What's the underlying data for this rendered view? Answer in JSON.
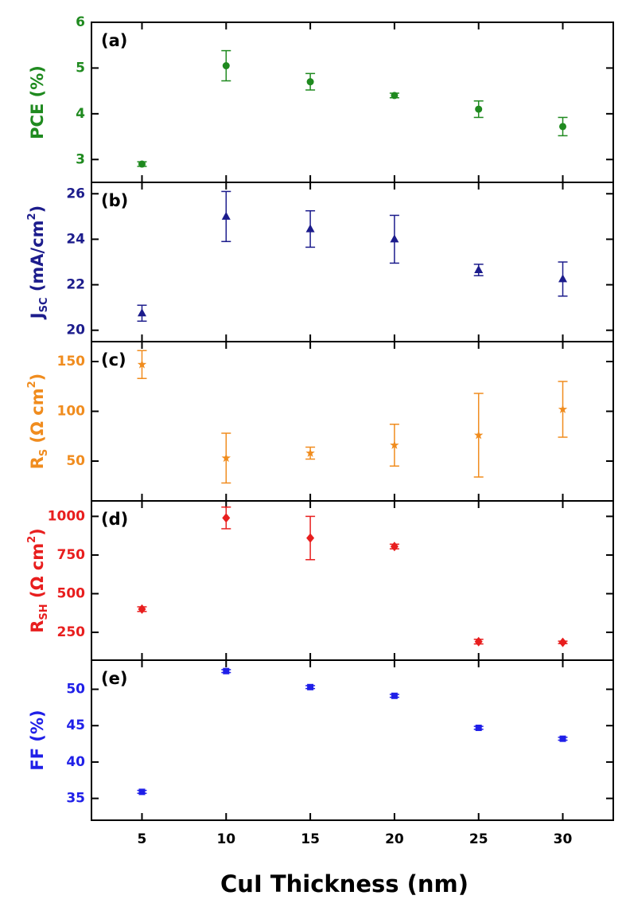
{
  "chart_data": [
    {
      "type": "scatter",
      "annotation": "(a)",
      "ylabel": [
        {
          "text": "PCE (%)"
        }
      ],
      "x": [
        5,
        10,
        15,
        20,
        25,
        30
      ],
      "series": [
        {
          "color": "#1f8a1f",
          "marker": "circle",
          "values": [
            2.9,
            5.05,
            4.7,
            4.4,
            4.1,
            3.72
          ],
          "errors": [
            0.05,
            0.33,
            0.18,
            0.05,
            0.18,
            0.2
          ]
        }
      ],
      "xlim": [
        2,
        33
      ],
      "xticks": [
        5,
        10,
        15,
        20,
        25,
        30
      ],
      "ylim": [
        2.5,
        6
      ],
      "yticks": [
        3,
        4,
        5,
        6
      ]
    },
    {
      "type": "scatter",
      "annotation": "(b)",
      "ylabel": [
        {
          "text": "J"
        },
        {
          "text": "SC",
          "script": "sub"
        },
        {
          "text": " (mA/cm"
        },
        {
          "text": "2",
          "script": "super"
        },
        {
          "text": ")"
        }
      ],
      "x": [
        5,
        10,
        15,
        20,
        25,
        30
      ],
      "series": [
        {
          "color": "#1c1c8c",
          "marker": "triangle",
          "values": [
            20.75,
            25.0,
            24.45,
            24.0,
            22.65,
            22.25
          ],
          "errors": [
            0.35,
            1.1,
            0.8,
            1.05,
            0.25,
            0.75
          ]
        }
      ],
      "xlim": [
        2,
        33
      ],
      "xticks": [
        5,
        10,
        15,
        20,
        25,
        30
      ],
      "ylim": [
        19.5,
        26.5
      ],
      "yticks": [
        20,
        22,
        24,
        26
      ]
    },
    {
      "type": "scatter",
      "annotation": "(c)",
      "ylabel": [
        {
          "text": "R"
        },
        {
          "text": "S",
          "script": "sub"
        },
        {
          "text": " (Ω cm"
        },
        {
          "text": "2",
          "script": "super"
        },
        {
          "text": ")"
        }
      ],
      "x": [
        5,
        10,
        15,
        20,
        25,
        30
      ],
      "series": [
        {
          "color": "#f08c1e",
          "marker": "star",
          "values": [
            147,
            53,
            58,
            66,
            76,
            102
          ],
          "errors": [
            14,
            25,
            6,
            21,
            42,
            28
          ]
        }
      ],
      "xlim": [
        2,
        33
      ],
      "xticks": [
        5,
        10,
        15,
        20,
        25,
        30
      ],
      "ylim": [
        10,
        170
      ],
      "yticks": [
        50,
        100,
        150
      ]
    },
    {
      "type": "scatter",
      "annotation": "(d)",
      "ylabel": [
        {
          "text": "R"
        },
        {
          "text": "SH",
          "script": "sub"
        },
        {
          "text": " (Ω cm"
        },
        {
          "text": "2",
          "script": "super"
        },
        {
          "text": ")"
        }
      ],
      "x": [
        5,
        10,
        15,
        20,
        25,
        30
      ],
      "series": [
        {
          "color": "#e81e1e",
          "marker": "diamond",
          "values": [
            400,
            990,
            860,
            805,
            190,
            185
          ],
          "errors": [
            15,
            70,
            140,
            15,
            15,
            8
          ]
        }
      ],
      "xlim": [
        2,
        33
      ],
      "xticks": [
        5,
        10,
        15,
        20,
        25,
        30
      ],
      "ylim": [
        70,
        1100
      ],
      "yticks": [
        250,
        500,
        750,
        1000
      ]
    },
    {
      "type": "scatter",
      "annotation": "(e)",
      "ylabel": [
        {
          "text": "FF (%)"
        }
      ],
      "xlabel": "CuI Thickness (nm)",
      "x": [
        5,
        10,
        15,
        20,
        25,
        30
      ],
      "series": [
        {
          "color": "#1f1fe8",
          "marker": "square",
          "values": [
            35.9,
            52.5,
            50.3,
            49.1,
            44.7,
            43.2
          ],
          "errors": [
            0.2,
            0.2,
            0.2,
            0.2,
            0.2,
            0.2
          ]
        }
      ],
      "xlim": [
        2,
        33
      ],
      "xticks": [
        5,
        10,
        15,
        20,
        25,
        30
      ],
      "ylim": [
        32,
        54
      ],
      "yticks": [
        35,
        40,
        45,
        50
      ]
    }
  ]
}
